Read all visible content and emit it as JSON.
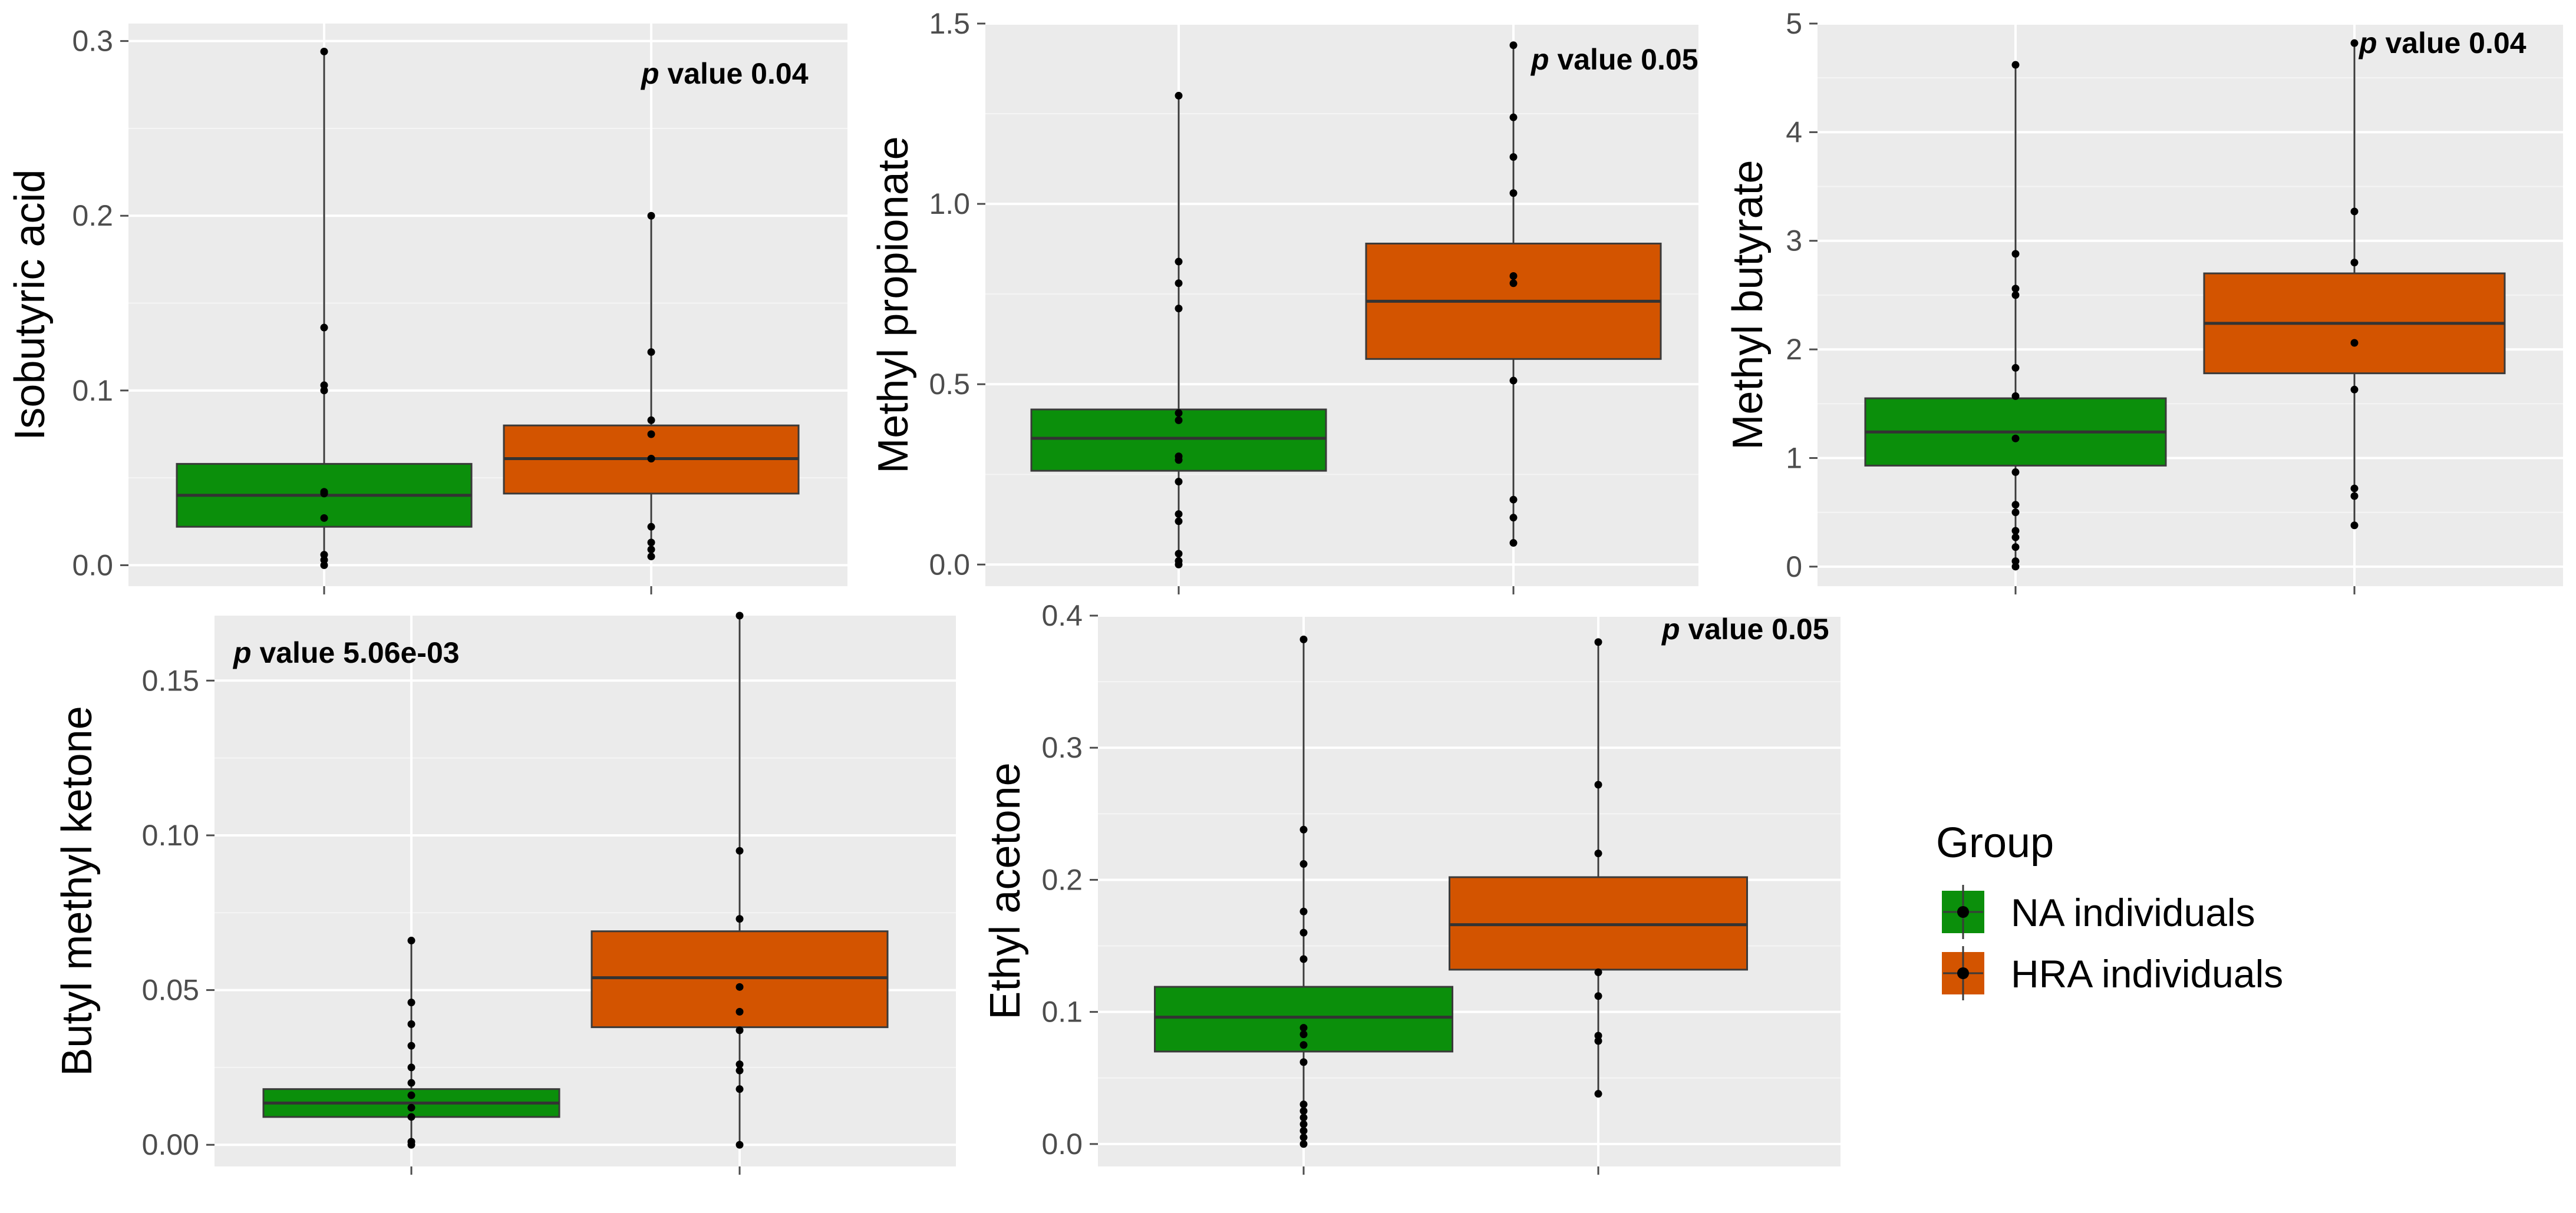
{
  "legend": {
    "title": "Group",
    "items": [
      {
        "label": "NA individuals",
        "color": "#0b8f0b"
      },
      {
        "label": "HRA individuals",
        "color": "#d35400"
      }
    ]
  },
  "chart_data": [
    {
      "type": "box",
      "ylabel": "Isobutyric acid",
      "annotation_p": "p",
      "annotation_text": " value 0.04",
      "ylim": [
        -0.012,
        0.31
      ],
      "yticks": [
        0.0,
        0.1,
        0.2,
        0.3
      ],
      "yticklabels": [
        "0.0",
        "0.1",
        "0.2",
        "0.3"
      ],
      "groups": [
        {
          "name": "NA individuals",
          "q1": 0.022,
          "median": 0.04,
          "q3": 0.058,
          "min": 0.0,
          "max": 0.294,
          "points": [
            0.0,
            0.003,
            0.006,
            0.027,
            0.041,
            0.042,
            0.1,
            0.103,
            0.136,
            0.294
          ]
        },
        {
          "name": "HRA individuals",
          "q1": 0.041,
          "median": 0.061,
          "q3": 0.08,
          "min": 0.005,
          "max": 0.2,
          "points": [
            0.005,
            0.009,
            0.013,
            0.022,
            0.061,
            0.075,
            0.083,
            0.122,
            0.2
          ]
        }
      ]
    },
    {
      "type": "box",
      "ylabel": "Methyl propionate",
      "annotation_p": "p",
      "annotation_text": " value 0.05",
      "ylim": [
        -0.06,
        1.5
      ],
      "yticks": [
        0.0,
        0.5,
        1.0,
        1.5
      ],
      "yticklabels": [
        "0.0",
        "0.5",
        "1.0",
        "1.5"
      ],
      "groups": [
        {
          "name": "NA individuals",
          "q1": 0.26,
          "median": 0.35,
          "q3": 0.43,
          "min": 0.0,
          "max": 1.3,
          "points": [
            0.0,
            0.01,
            0.03,
            0.12,
            0.14,
            0.23,
            0.29,
            0.3,
            0.4,
            0.42,
            0.71,
            0.78,
            0.84,
            1.3
          ]
        },
        {
          "name": "HRA individuals",
          "q1": 0.57,
          "median": 0.73,
          "q3": 0.89,
          "min": 0.06,
          "max": 1.44,
          "points": [
            0.06,
            0.13,
            0.18,
            0.51,
            0.78,
            0.8,
            1.03,
            1.13,
            1.24,
            1.44
          ]
        }
      ]
    },
    {
      "type": "box",
      "ylabel": "Methyl butyrate",
      "annotation_p": "p",
      "annotation_text": " value 0.04",
      "ylim": [
        -0.18,
        5.0
      ],
      "yticks": [
        0,
        1,
        2,
        3,
        4,
        5
      ],
      "yticklabels": [
        "0",
        "1",
        "2",
        "3",
        "4",
        "5"
      ],
      "groups": [
        {
          "name": "NA individuals",
          "q1": 0.93,
          "median": 1.24,
          "q3": 1.55,
          "min": 0.0,
          "max": 4.62,
          "points": [
            0.0,
            0.05,
            0.18,
            0.27,
            0.33,
            0.5,
            0.57,
            0.87,
            1.18,
            1.57,
            1.83,
            2.5,
            2.56,
            2.88,
            4.62
          ]
        },
        {
          "name": "HRA individuals",
          "q1": 1.78,
          "median": 2.24,
          "q3": 2.7,
          "min": 0.38,
          "max": 4.82,
          "points": [
            0.38,
            0.65,
            0.72,
            1.63,
            2.06,
            2.8,
            3.27,
            4.82
          ]
        }
      ]
    },
    {
      "type": "box",
      "ylabel": "Butyl methyl ketone",
      "annotation_p": "p",
      "annotation_text": " value 5.06e-03",
      "ylim": [
        -0.007,
        0.171
      ],
      "yticks": [
        0.0,
        0.05,
        0.1,
        0.15
      ],
      "yticklabels": [
        "0.00",
        "0.05",
        "0.10",
        "0.15"
      ],
      "groups": [
        {
          "name": "NA individuals",
          "q1": 0.009,
          "median": 0.0135,
          "q3": 0.018,
          "min": 0.0,
          "max": 0.066,
          "points": [
            0.0,
            0.001,
            0.009,
            0.012,
            0.016,
            0.02,
            0.025,
            0.032,
            0.039,
            0.046,
            0.066
          ]
        },
        {
          "name": "HRA individuals",
          "q1": 0.038,
          "median": 0.054,
          "q3": 0.069,
          "min": 0.0,
          "max": 0.171,
          "points": [
            0.0,
            0.018,
            0.024,
            0.026,
            0.037,
            0.043,
            0.051,
            0.073,
            0.095,
            0.171
          ]
        }
      ]
    },
    {
      "type": "box",
      "ylabel": "Ethyl acetone",
      "annotation_p": "p",
      "annotation_text": " value 0.05",
      "ylim": [
        -0.017,
        0.4
      ],
      "yticks": [
        0.0,
        0.1,
        0.2,
        0.3,
        0.4
      ],
      "yticklabels": [
        "0.0",
        "0.1",
        "0.2",
        "0.3",
        "0.4"
      ],
      "groups": [
        {
          "name": "NA individuals",
          "q1": 0.07,
          "median": 0.096,
          "q3": 0.119,
          "min": 0.0,
          "max": 0.382,
          "points": [
            0.0,
            0.005,
            0.01,
            0.015,
            0.02,
            0.025,
            0.03,
            0.062,
            0.075,
            0.083,
            0.088,
            0.14,
            0.16,
            0.176,
            0.212,
            0.238,
            0.382
          ]
        },
        {
          "name": "HRA individuals",
          "q1": 0.132,
          "median": 0.166,
          "q3": 0.202,
          "min": 0.038,
          "max": 0.38,
          "points": [
            0.038,
            0.078,
            0.082,
            0.112,
            0.13,
            0.22,
            0.272,
            0.38
          ]
        }
      ]
    }
  ]
}
